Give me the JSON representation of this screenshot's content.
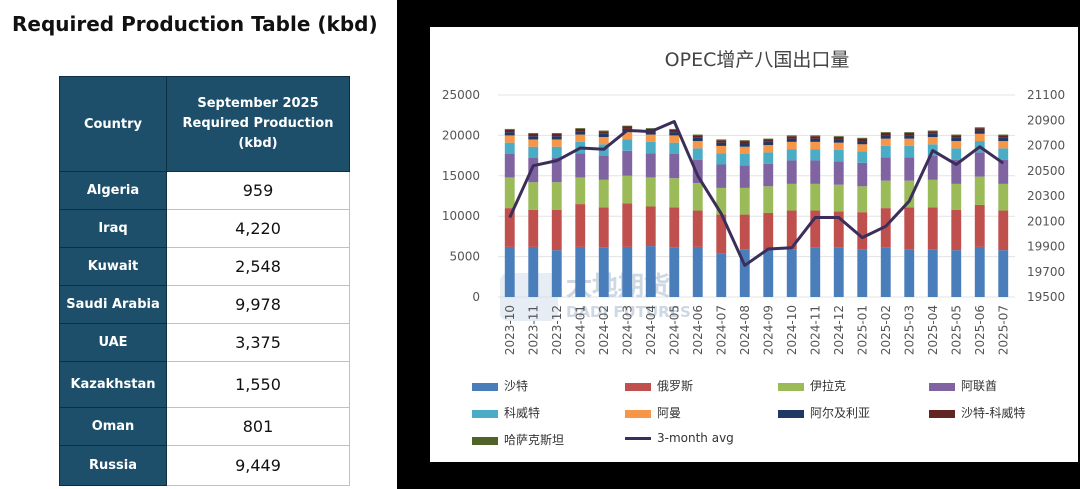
{
  "left": {
    "title": "Required Production Table (kbd)",
    "header": {
      "country": "Country",
      "value": "September 2025 Required Production (kbd)"
    },
    "rows": [
      {
        "country": "Algeria",
        "value": "959"
      },
      {
        "country": "Iraq",
        "value": "4,220"
      },
      {
        "country": "Kuwait",
        "value": "2,548"
      },
      {
        "country": "Saudi Arabia",
        "value": "9,978"
      },
      {
        "country": "UAE",
        "value": "3,375"
      },
      {
        "country": "Kazakhstan",
        "value": "1,550"
      },
      {
        "country": "Oman",
        "value": "801"
      },
      {
        "country": "Russia",
        "value": "9,449"
      }
    ]
  },
  "watermark": {
    "cn": "大地期货",
    "en": "DADI FUTURES"
  },
  "chart_data": {
    "type": "bar",
    "stacked": true,
    "title": "OPEC增产八国出口量",
    "categories": [
      "2023-10",
      "2023-11",
      "2023-12",
      "2024-01",
      "2024-02",
      "2024-03",
      "2024-04",
      "2024-05",
      "2024-06",
      "2024-07",
      "2024-08",
      "2024-09",
      "2024-10",
      "2024-11",
      "2024-12",
      "2025-01",
      "2025-02",
      "2025-03",
      "2025-04",
      "2025-05",
      "2025-06",
      "2025-07"
    ],
    "ylim": [
      0,
      25000
    ],
    "yticks": [
      "0",
      "5000",
      "10000",
      "15000",
      "20000",
      "25000"
    ],
    "y2lim": [
      19500,
      21100
    ],
    "y2ticks": [
      "19500",
      "19700",
      "19900",
      "20100",
      "20300",
      "20500",
      "20700",
      "20900",
      "21100"
    ],
    "grid": true,
    "legend_position": "bottom",
    "series": [
      {
        "name": "沙特",
        "color": "#4a7ebb",
        "values": [
          6200,
          6200,
          5800,
          6200,
          6100,
          6200,
          6300,
          6100,
          6200,
          5400,
          5900,
          5900,
          5900,
          6100,
          6100,
          5900,
          6100,
          5900,
          5900,
          5800,
          6200,
          5800
        ]
      },
      {
        "name": "俄罗斯",
        "color": "#c0504d",
        "values": [
          4800,
          4600,
          5000,
          5300,
          5000,
          5400,
          4900,
          5000,
          4500,
          4800,
          4300,
          4500,
          4800,
          4600,
          4500,
          4600,
          4900,
          5200,
          5200,
          5000,
          5200,
          4900
        ]
      },
      {
        "name": "伊拉克",
        "color": "#9bbb59",
        "values": [
          3800,
          3400,
          3400,
          3300,
          3400,
          3400,
          3600,
          3600,
          3400,
          3300,
          3300,
          3300,
          3300,
          3300,
          3300,
          3200,
          3400,
          3300,
          3400,
          3200,
          3500,
          3300
        ]
      },
      {
        "name": "阿联酋",
        "color": "#8064a2",
        "values": [
          2900,
          3000,
          3000,
          3000,
          3000,
          3100,
          3000,
          3000,
          2900,
          2900,
          2800,
          2800,
          2900,
          2900,
          2900,
          2900,
          2900,
          2900,
          3000,
          3000,
          3000,
          3000
        ]
      },
      {
        "name": "科威特",
        "color": "#4bacc6",
        "values": [
          1400,
          1400,
          1400,
          1400,
          1400,
          1400,
          1400,
          1400,
          1400,
          1400,
          1400,
          1400,
          1400,
          1400,
          1400,
          1400,
          1400,
          1400,
          1400,
          1400,
          1400,
          1400
        ]
      },
      {
        "name": "阿曼",
        "color": "#f79646",
        "values": [
          900,
          900,
          900,
          900,
          900,
          900,
          900,
          900,
          900,
          900,
          900,
          900,
          900,
          900,
          900,
          900,
          900,
          900,
          900,
          900,
          900,
          900
        ]
      },
      {
        "name": "阿尔及利亚",
        "color": "#1f3864",
        "values": [
          400,
          400,
          400,
          400,
          400,
          400,
          400,
          400,
          400,
          400,
          400,
          400,
          400,
          400,
          400,
          400,
          400,
          400,
          400,
          400,
          400,
          400
        ]
      },
      {
        "name": "沙特-科威特",
        "color": "#632523",
        "values": [
          300,
          300,
          300,
          300,
          300,
          300,
          300,
          300,
          300,
          300,
          300,
          300,
          300,
          300,
          300,
          300,
          300,
          300,
          300,
          300,
          300,
          300
        ]
      },
      {
        "name": "哈萨克斯坦",
        "color": "#4f6228",
        "values": [
          100,
          100,
          100,
          100,
          100,
          100,
          100,
          100,
          100,
          100,
          100,
          100,
          100,
          100,
          100,
          100,
          100,
          100,
          100,
          100,
          100,
          100
        ]
      }
    ],
    "line": {
      "name": "3-month avg",
      "color": "#3b2e5a",
      "axis": "right",
      "values": [
        20130,
        20540,
        20580,
        20680,
        20670,
        20820,
        20810,
        20890,
        20460,
        20160,
        19750,
        19880,
        19890,
        20130,
        20130,
        19970,
        20060,
        20260,
        20660,
        20550,
        20690,
        20560
      ]
    }
  }
}
